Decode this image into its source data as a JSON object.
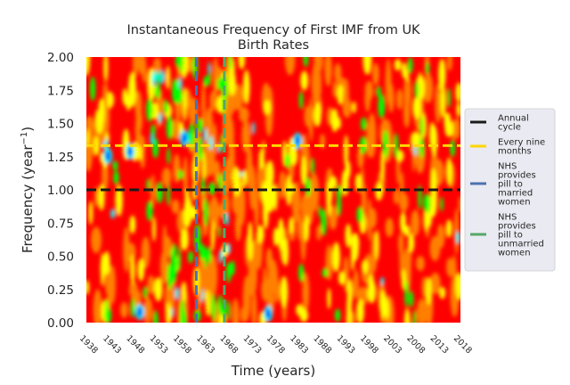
{
  "chart_data": {
    "type": "heatmap",
    "title_line1": "Instantaneous Frequency of First IMF from UK",
    "title_line2": "Birth Rates",
    "xlabel": "Time (years)",
    "ylabel_main": "Frequency (year",
    "ylabel_sup": "−1",
    "ylabel_end": ")",
    "xlim": [
      1938,
      2018
    ],
    "ylim": [
      0,
      2
    ],
    "xticks": [
      "1938",
      "1943",
      "1948",
      "1953",
      "1958",
      "1963",
      "1968",
      "1973",
      "1978",
      "1983",
      "1988",
      "1993",
      "1998",
      "2003",
      "2008",
      "2013",
      "2018"
    ],
    "yticks": [
      "0.00",
      "0.25",
      "0.50",
      "0.75",
      "1.00",
      "1.25",
      "1.50",
      "1.75",
      "2.00"
    ],
    "reference_lines": [
      {
        "name_lines": [
          "Annual",
          "cycle"
        ],
        "orientation": "horizontal",
        "value": 1.0,
        "color": "#1a1a1a"
      },
      {
        "name_lines": [
          "Every nine",
          "months"
        ],
        "orientation": "horizontal",
        "value": 1.3333,
        "color": "#ffd700"
      },
      {
        "name_lines": [
          "NHS",
          "provides",
          "pill to",
          "married",
          "women"
        ],
        "orientation": "vertical",
        "value": 1961.5,
        "color": "#4c72b0"
      },
      {
        "name_lines": [
          "NHS",
          "provides",
          "pill to",
          "unmarried",
          "women"
        ],
        "orientation": "vertical",
        "value": 1967.5,
        "color": "#55a868"
      }
    ],
    "colormap": [
      "#ff0000",
      "#ff3300",
      "#ff8000",
      "#ffff00",
      "#00ff00",
      "#00ffff",
      "#0000ff"
    ],
    "legend_position": "center right",
    "grid": false
  }
}
